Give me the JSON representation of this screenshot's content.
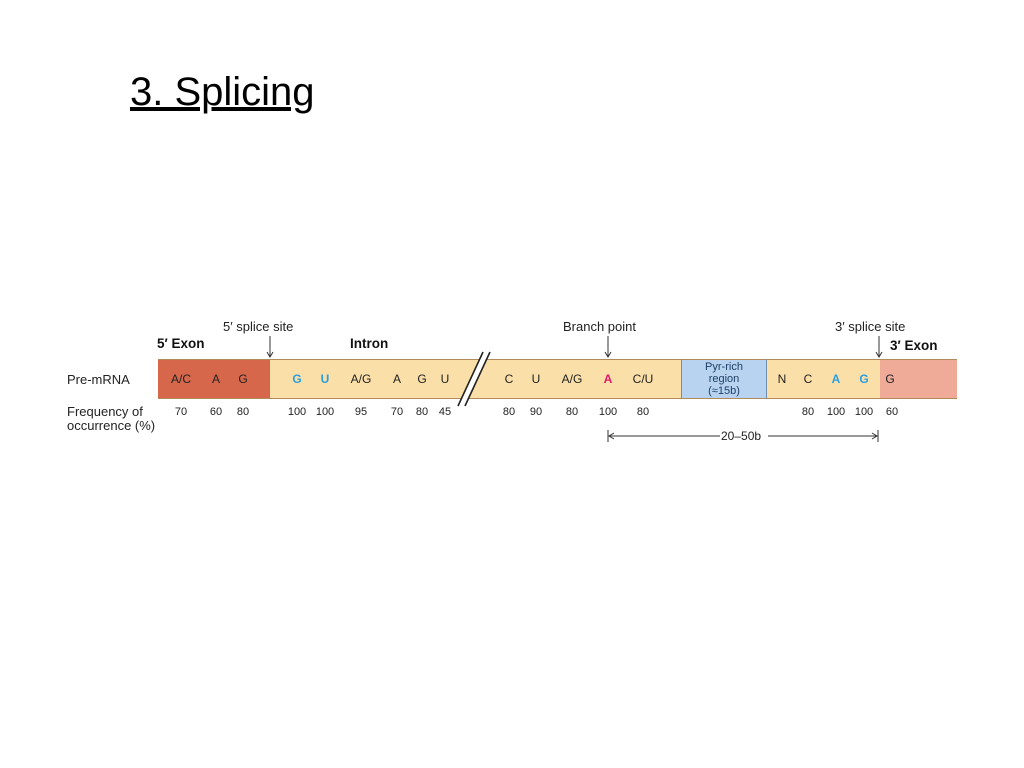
{
  "slide": {
    "title": "3. Splicing"
  },
  "diagram": {
    "labels": {
      "splice5": "5′ splice site",
      "branch": "Branch point",
      "splice3": "3′ splice site",
      "exon5": "5′ Exon",
      "intron": "Intron",
      "exon3": "3′ Exon",
      "premrna": "Pre-mRNA",
      "freq_line1": "Frequency of",
      "freq_line2": "occurrence (%)",
      "distance": "20–50b"
    },
    "pyr_region": {
      "line1": "Pyr-rich",
      "line2": "region",
      "line3": "(≈15b)"
    },
    "colors": {
      "exon5": "#d6674a",
      "intron": "#fbdfa8",
      "pyr_region": "#b7d3f0",
      "exon3": "#efaa98",
      "conserved_blue": "#2a9fe0",
      "branch_red": "#e0186a"
    },
    "nucleotides": [
      {
        "base": "A/C",
        "freq": "70",
        "color": "default"
      },
      {
        "base": "A",
        "freq": "60",
        "color": "default"
      },
      {
        "base": "G",
        "freq": "80",
        "color": "default"
      },
      {
        "base": "G",
        "freq": "100",
        "color": "blue"
      },
      {
        "base": "U",
        "freq": "100",
        "color": "blue"
      },
      {
        "base": "A/G",
        "freq": "95",
        "color": "default"
      },
      {
        "base": "A",
        "freq": "70",
        "color": "default"
      },
      {
        "base": "G",
        "freq": "80",
        "color": "default"
      },
      {
        "base": "U",
        "freq": "45",
        "color": "default"
      },
      {
        "base": "C",
        "freq": "80",
        "color": "default"
      },
      {
        "base": "U",
        "freq": "90",
        "color": "default"
      },
      {
        "base": "A/G",
        "freq": "80",
        "color": "default"
      },
      {
        "base": "A",
        "freq": "100",
        "color": "red"
      },
      {
        "base": "C/U",
        "freq": "80",
        "color": "default"
      },
      {
        "base": "N",
        "freq": "",
        "color": "default"
      },
      {
        "base": "C",
        "freq": "80",
        "color": "default"
      },
      {
        "base": "A",
        "freq": "100",
        "color": "blue"
      },
      {
        "base": "G",
        "freq": "100",
        "color": "blue"
      },
      {
        "base": "G",
        "freq": "60",
        "color": "default"
      }
    ]
  }
}
